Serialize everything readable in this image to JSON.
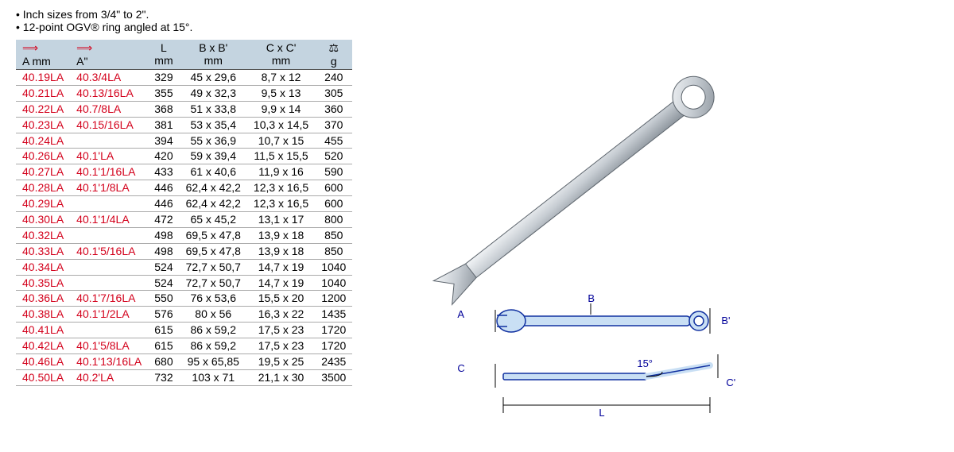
{
  "bullets": [
    "Inch sizes from 3/4\" to 2\".",
    "12-point OGV® ring angled at 15°."
  ],
  "table": {
    "header": {
      "amm_icon": "⟹",
      "amm_label": "A mm",
      "ain_icon": "⟹",
      "ain_label": "A\"",
      "L_top": "L",
      "L_unit": "mm",
      "BB_top": "B x B'",
      "BB_unit": "mm",
      "CC_top": "C x C'",
      "CC_unit": "mm",
      "g_top": "⚖",
      "g_unit": "g"
    },
    "rows": [
      {
        "amm": "40.19LA",
        "ain": "40.3/4LA",
        "L": "329",
        "BB": "45 x 29,6",
        "CC": "8,7 x 12",
        "g": "240"
      },
      {
        "amm": "40.21LA",
        "ain": "40.13/16LA",
        "L": "355",
        "BB": "49 x 32,3",
        "CC": "9,5 x 13",
        "g": "305"
      },
      {
        "amm": "40.22LA",
        "ain": "40.7/8LA",
        "L": "368",
        "BB": "51 x 33,8",
        "CC": "9,9 x 14",
        "g": "360"
      },
      {
        "amm": "40.23LA",
        "ain": "40.15/16LA",
        "L": "381",
        "BB": "53 x 35,4",
        "CC": "10,3 x 14,5",
        "g": "370"
      },
      {
        "amm": "40.24LA",
        "ain": "",
        "L": "394",
        "BB": "55 x 36,9",
        "CC": "10,7 x 15",
        "g": "455"
      },
      {
        "amm": "40.26LA",
        "ain": "40.1'LA",
        "L": "420",
        "BB": "59 x 39,4",
        "CC": "11,5 x 15,5",
        "g": "520"
      },
      {
        "amm": "40.27LA",
        "ain": "40.1'1/16LA",
        "L": "433",
        "BB": "61 x 40,6",
        "CC": "11,9 x 16",
        "g": "590"
      },
      {
        "amm": "40.28LA",
        "ain": "40.1'1/8LA",
        "L": "446",
        "BB": "62,4 x 42,2",
        "CC": "12,3 x 16,5",
        "g": "600"
      },
      {
        "amm": "40.29LA",
        "ain": "",
        "L": "446",
        "BB": "62,4 x 42,2",
        "CC": "12,3 x 16,5",
        "g": "600"
      },
      {
        "amm": "40.30LA",
        "ain": "40.1'1/4LA",
        "L": "472",
        "BB": "65 x 45,2",
        "CC": "13,1 x 17",
        "g": "800"
      },
      {
        "amm": "40.32LA",
        "ain": "",
        "L": "498",
        "BB": "69,5 x 47,8",
        "CC": "13,9 x 18",
        "g": "850"
      },
      {
        "amm": "40.33LA",
        "ain": "40.1'5/16LA",
        "L": "498",
        "BB": "69,5 x 47,8",
        "CC": "13,9 x 18",
        "g": "850"
      },
      {
        "amm": "40.34LA",
        "ain": "",
        "L": "524",
        "BB": "72,7 x 50,7",
        "CC": "14,7 x 19",
        "g": "1040"
      },
      {
        "amm": "40.35LA",
        "ain": "",
        "L": "524",
        "BB": "72,7 x 50,7",
        "CC": "14,7 x 19",
        "g": "1040"
      },
      {
        "amm": "40.36LA",
        "ain": "40.1'7/16LA",
        "L": "550",
        "BB": "76 x 53,6",
        "CC": "15,5 x 20",
        "g": "1200"
      },
      {
        "amm": "40.38LA",
        "ain": "40.1'1/2LA",
        "L": "576",
        "BB": "80 x 56",
        "CC": "16,3 x 22",
        "g": "1435"
      },
      {
        "amm": "40.41LA",
        "ain": "",
        "L": "615",
        "BB": "86 x 59,2",
        "CC": "17,5 x 23",
        "g": "1720"
      },
      {
        "amm": "40.42LA",
        "ain": "40.1'5/8LA",
        "L": "615",
        "BB": "86 x 59,2",
        "CC": "17,5 x 23",
        "g": "1720"
      },
      {
        "amm": "40.46LA",
        "ain": "40.1'13/16LA",
        "L": "680",
        "BB": "95 x 65,85",
        "CC": "19,5 x 25",
        "g": "2435"
      },
      {
        "amm": "40.50LA",
        "ain": "40.2'LA",
        "L": "732",
        "BB": "103 x 71",
        "CC": "21,1 x 30",
        "g": "3500"
      }
    ]
  },
  "diagram": {
    "labels": {
      "A": "A",
      "B": "B",
      "Bp": "B'",
      "C": "C",
      "Cp": "C'",
      "L": "L",
      "angle": "15°"
    },
    "colors": {
      "line": "#1030a0",
      "fill": "#c9dff4",
      "dim": "#000080"
    },
    "product_colors": {
      "metal_light": "#f4f6f8",
      "metal_mid": "#c6ccd2",
      "metal_dark": "#8a929a",
      "outline": "#5c646c"
    }
  }
}
